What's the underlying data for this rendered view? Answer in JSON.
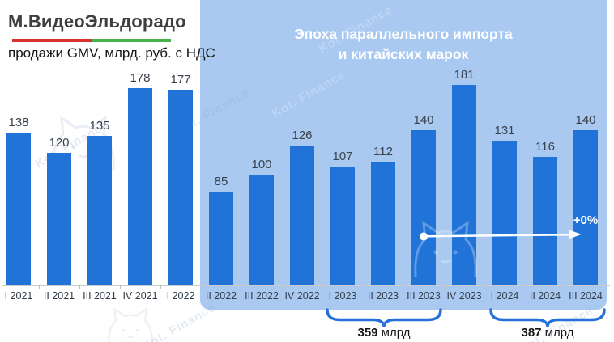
{
  "brand": {
    "logo": "М.ВидеоЭльдорадо",
    "subtitle": "продажи GMV, млрд. руб. с НДС",
    "underline_red": "#d5312e",
    "underline_green": "#45b54a"
  },
  "chart_data": {
    "type": "bar",
    "title": "продажи GMV, млрд. руб. с НДС",
    "xlabel": "",
    "ylabel": "млрд руб. с НДС",
    "ylim": [
      0,
      190
    ],
    "grid": false,
    "bar_color": "#2173d8",
    "value_labels_shown": true,
    "categories": [
      "I 2021",
      "II 2021",
      "III 2021",
      "IV 2021",
      "I 2022",
      "II 2022",
      "III 2022",
      "IV 2022",
      "I 2023",
      "II 2023",
      "III 2023",
      "IV 2023",
      "I 2024",
      "II 2024",
      "III 2024"
    ],
    "values": [
      138,
      120,
      135,
      178,
      177,
      85,
      100,
      126,
      107,
      112,
      140,
      181,
      131,
      116,
      140
    ],
    "highlight": {
      "from": "II 2022",
      "to": "III 2024",
      "bg_color": "#a9c9f0",
      "title_lines": [
        "Эпоха параллельного импорта",
        "и китайских марок"
      ]
    },
    "annotations": [
      {
        "type": "underbrace",
        "from": "I 2023",
        "to": "III 2023",
        "value": "359",
        "unit": " млрд"
      },
      {
        "type": "underbrace",
        "from": "I 2024",
        "to": "III 2024",
        "value": "387",
        "unit": " млрд"
      },
      {
        "type": "arrow",
        "from": "III 2023",
        "to": "III 2024",
        "label": "+0%"
      }
    ]
  },
  "watermark": {
    "text": "Kot. Finance",
    "cat_icon": "cat-face-outline"
  }
}
